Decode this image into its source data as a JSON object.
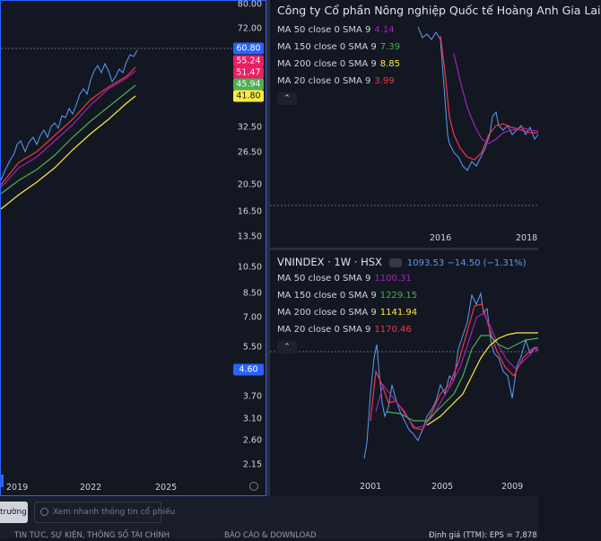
{
  "left_chart": {
    "price_scale": [
      "80.00",
      "72.00",
      "32.50",
      "26.50",
      "20.50",
      "16.50",
      "13.50",
      "10.50",
      "8.50",
      "7.00",
      "5.50",
      "3.70",
      "3.10",
      "2.60",
      "2.15"
    ],
    "price_tags": [
      {
        "label": "60.80",
        "bg": "#2962ff",
        "fg": "#ffffff"
      },
      {
        "label": "55.24",
        "bg": "#e91e63",
        "fg": "#ffffff"
      },
      {
        "label": "51.47",
        "bg": "#e91e63",
        "fg": "#ffffff"
      },
      {
        "label": "45.94",
        "bg": "#4caf50",
        "fg": "#ffffff"
      },
      {
        "label": "41.80",
        "bg": "#ffeb3b",
        "fg": "#131722"
      },
      {
        "label": "4.60",
        "bg": "#2962ff",
        "fg": "#ffffff"
      }
    ],
    "time_axis": [
      "2019",
      "2022",
      "2025"
    ]
  },
  "top_right": {
    "title": "Công ty Cổ phần Nông nghiệp Quốc tế Hoàng Anh Gia Lai",
    "legend": [
      {
        "label": "MA 50 close 0 SMA 9",
        "value": "4.14",
        "color": "#9c27b0"
      },
      {
        "label": "MA 150 close 0 SMA 9",
        "value": "7.39",
        "color": "#4caf50"
      },
      {
        "label": "MA 200 close 0 SMA 9",
        "value": "8.85",
        "color": "#ffeb3b"
      },
      {
        "label": "MA 20 close 0 SMA 9",
        "value": "3.99",
        "color": "#f23645"
      }
    ],
    "collapse": "⌃",
    "time_axis": [
      "2016",
      "2018"
    ]
  },
  "bottom_right": {
    "symbol": "VNINDEX · 1W · HSX",
    "quote": "1093.53  −14.50 (−1.31%)",
    "legend": [
      {
        "label": "MA 50 close 0 SMA 9",
        "value": "1100.31",
        "color": "#9c27b0"
      },
      {
        "label": "MA 150 close 0 SMA 9",
        "value": "1229.15",
        "color": "#4caf50"
      },
      {
        "label": "MA 200 close 0 SMA 9",
        "value": "1141.94",
        "color": "#ffeb3b"
      },
      {
        "label": "MA 20 close 0 SMA 9",
        "value": "1170.46",
        "color": "#f23645"
      }
    ],
    "collapse": "⌃",
    "time_axis": [
      "2001",
      "2005",
      "2009"
    ]
  },
  "bottom_bar": {
    "market_button": "trường",
    "search_placeholder": "Xem nhanh thông tin cổ phiếu",
    "nav_items": [
      "TIN TỨC, SỰ KIỆN, THÔNG SỐ TÀI CHÍNH",
      "BÁO CÁO & DOWNLOAD",
      "Định giá (TTM): EPS = 7,878"
    ]
  }
}
